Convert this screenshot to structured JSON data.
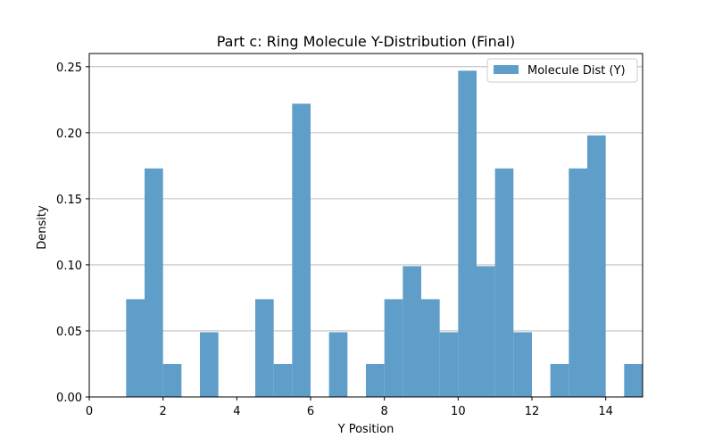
{
  "chart_data": {
    "type": "bar",
    "title": "Part c: Ring Molecule Y-Distribution (Final)",
    "xlabel": "Y Position",
    "ylabel": "Density",
    "xlim": [
      0,
      15
    ],
    "ylim": [
      0,
      0.26
    ],
    "xticks": [
      "0",
      "2",
      "4",
      "6",
      "8",
      "10",
      "12",
      "14"
    ],
    "yticks": [
      "0.00",
      "0.05",
      "0.10",
      "0.15",
      "0.20",
      "0.25"
    ],
    "grid": "horizontal",
    "legend": {
      "position": "top-right",
      "entries": [
        "Molecule Dist (Y)"
      ]
    },
    "series": [
      {
        "name": "Molecule Dist (Y)",
        "color": "#5f9ec9",
        "bin_width": 0.5,
        "bins": [
          {
            "x0": 1.0,
            "value": 0.074
          },
          {
            "x0": 1.5,
            "value": 0.173
          },
          {
            "x0": 2.0,
            "value": 0.025
          },
          {
            "x0": 3.0,
            "value": 0.049
          },
          {
            "x0": 4.5,
            "value": 0.074
          },
          {
            "x0": 5.0,
            "value": 0.025
          },
          {
            "x0": 5.5,
            "value": 0.222
          },
          {
            "x0": 6.5,
            "value": 0.049
          },
          {
            "x0": 7.5,
            "value": 0.025
          },
          {
            "x0": 8.0,
            "value": 0.074
          },
          {
            "x0": 8.5,
            "value": 0.099
          },
          {
            "x0": 9.0,
            "value": 0.074
          },
          {
            "x0": 9.5,
            "value": 0.049
          },
          {
            "x0": 10.0,
            "value": 0.247
          },
          {
            "x0": 10.5,
            "value": 0.099
          },
          {
            "x0": 11.0,
            "value": 0.173
          },
          {
            "x0": 11.5,
            "value": 0.049
          },
          {
            "x0": 12.5,
            "value": 0.025
          },
          {
            "x0": 13.0,
            "value": 0.173
          },
          {
            "x0": 13.5,
            "value": 0.198
          },
          {
            "x0": 14.5,
            "value": 0.025
          }
        ]
      }
    ]
  }
}
